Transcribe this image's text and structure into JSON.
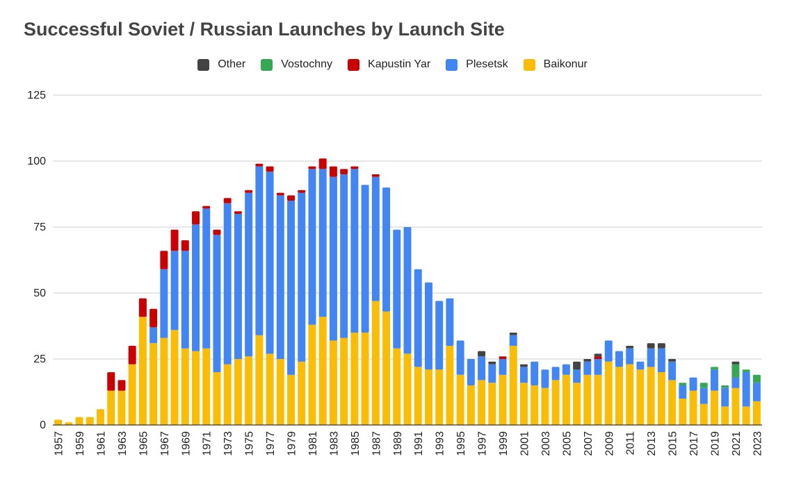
{
  "chart_data": {
    "type": "bar",
    "stacked": true,
    "title": "Successful Soviet / Russian Launches by Launch Site",
    "ylim": [
      0,
      125
    ],
    "yticks": [
      0,
      25,
      50,
      75,
      100,
      125
    ],
    "grid": true,
    "legend_position": "top",
    "categories": [
      1957,
      1958,
      1959,
      1960,
      1961,
      1962,
      1963,
      1964,
      1965,
      1966,
      1967,
      1968,
      1969,
      1970,
      1971,
      1972,
      1973,
      1974,
      1975,
      1976,
      1977,
      1978,
      1979,
      1980,
      1981,
      1982,
      1983,
      1984,
      1985,
      1986,
      1987,
      1988,
      1989,
      1990,
      1991,
      1992,
      1993,
      1994,
      1995,
      1996,
      1997,
      1998,
      1999,
      2000,
      2001,
      2002,
      2003,
      2004,
      2005,
      2006,
      2007,
      2008,
      2009,
      2010,
      2011,
      2012,
      2013,
      2014,
      2015,
      2016,
      2017,
      2018,
      2019,
      2020,
      2021,
      2022,
      2023
    ],
    "xtick_labels": [
      "1957",
      "1959",
      "1961",
      "1963",
      "1965",
      "1967",
      "1969",
      "1971",
      "1973",
      "1975",
      "1977",
      "1979",
      "1981",
      "1983",
      "1985",
      "1987",
      "1989",
      "1991",
      "1993",
      "1995",
      "1997",
      "1999",
      "2001",
      "2003",
      "2005",
      "2007",
      "2009",
      "2011",
      "2013",
      "2015",
      "2017",
      "2019",
      "2021",
      "2023"
    ],
    "series": [
      {
        "name": "Baikonur",
        "color": "#FBBC04",
        "values": [
          2,
          1,
          3,
          3,
          6,
          13,
          13,
          23,
          41,
          31,
          33,
          36,
          29,
          28,
          29,
          20,
          23,
          25,
          26,
          34,
          27,
          25,
          19,
          24,
          38,
          41,
          32,
          33,
          35,
          35,
          47,
          43,
          29,
          27,
          22,
          21,
          21,
          30,
          19,
          15,
          17,
          16,
          19,
          30,
          16,
          15,
          14,
          17,
          19,
          16,
          19,
          19,
          24,
          22,
          23,
          21,
          22,
          20,
          17,
          10,
          13,
          8,
          13,
          7,
          14,
          7,
          9
        ]
      },
      {
        "name": "Plesetsk",
        "color": "#4285F4",
        "values": [
          0,
          0,
          0,
          0,
          0,
          0,
          0,
          0,
          0,
          6,
          26,
          30,
          37,
          48,
          53,
          52,
          61,
          55,
          62,
          64,
          69,
          62,
          66,
          64,
          59,
          56,
          62,
          62,
          62,
          56,
          47,
          47,
          45,
          48,
          37,
          33,
          26,
          18,
          13,
          10,
          9,
          7,
          6,
          4,
          6,
          9,
          7,
          5,
          4,
          5,
          5,
          6,
          8,
          6,
          6,
          3,
          7,
          9,
          7,
          5,
          5,
          6,
          8,
          7,
          4,
          13,
          7
        ]
      },
      {
        "name": "Kapustin Yar",
        "color": "#CC0000",
        "values": [
          0,
          0,
          0,
          0,
          0,
          7,
          4,
          7,
          7,
          7,
          7,
          8,
          4,
          5,
          1,
          2,
          2,
          1,
          1,
          1,
          2,
          1,
          2,
          1,
          1,
          4,
          4,
          2,
          1,
          0,
          1,
          0,
          0,
          0,
          0,
          0,
          0,
          0,
          0,
          0,
          0,
          0,
          1,
          0,
          0,
          0,
          0,
          0,
          0,
          0,
          0,
          1,
          0,
          0,
          0,
          0,
          0,
          0,
          0,
          0,
          0,
          0,
          0,
          0,
          0,
          0,
          0
        ]
      },
      {
        "name": "Vostochny",
        "color": "#34A853",
        "values": [
          0,
          0,
          0,
          0,
          0,
          0,
          0,
          0,
          0,
          0,
          0,
          0,
          0,
          0,
          0,
          0,
          0,
          0,
          0,
          0,
          0,
          0,
          0,
          0,
          0,
          0,
          0,
          0,
          0,
          0,
          0,
          0,
          0,
          0,
          0,
          0,
          0,
          0,
          0,
          0,
          0,
          0,
          0,
          0,
          0,
          0,
          0,
          0,
          0,
          0,
          0,
          0,
          0,
          0,
          0,
          0,
          0,
          0,
          0,
          1,
          0,
          2,
          1,
          1,
          5,
          1,
          3
        ]
      },
      {
        "name": "Other",
        "color": "#434343",
        "values": [
          0,
          0,
          0,
          0,
          0,
          0,
          0,
          0,
          0,
          0,
          0,
          0,
          0,
          0,
          0,
          0,
          0,
          0,
          0,
          0,
          0,
          0,
          0,
          0,
          0,
          0,
          0,
          0,
          0,
          0,
          0,
          0,
          0,
          0,
          0,
          0,
          0,
          0,
          0,
          0,
          2,
          1,
          0,
          1,
          1,
          0,
          0,
          0,
          0,
          3,
          1,
          1,
          0,
          0,
          1,
          0,
          2,
          2,
          1,
          0,
          0,
          0,
          0,
          0,
          1,
          0,
          0
        ]
      }
    ]
  },
  "legend_order": [
    "Other",
    "Vostochny",
    "Kapustin Yar",
    "Plesetsk",
    "Baikonur"
  ]
}
